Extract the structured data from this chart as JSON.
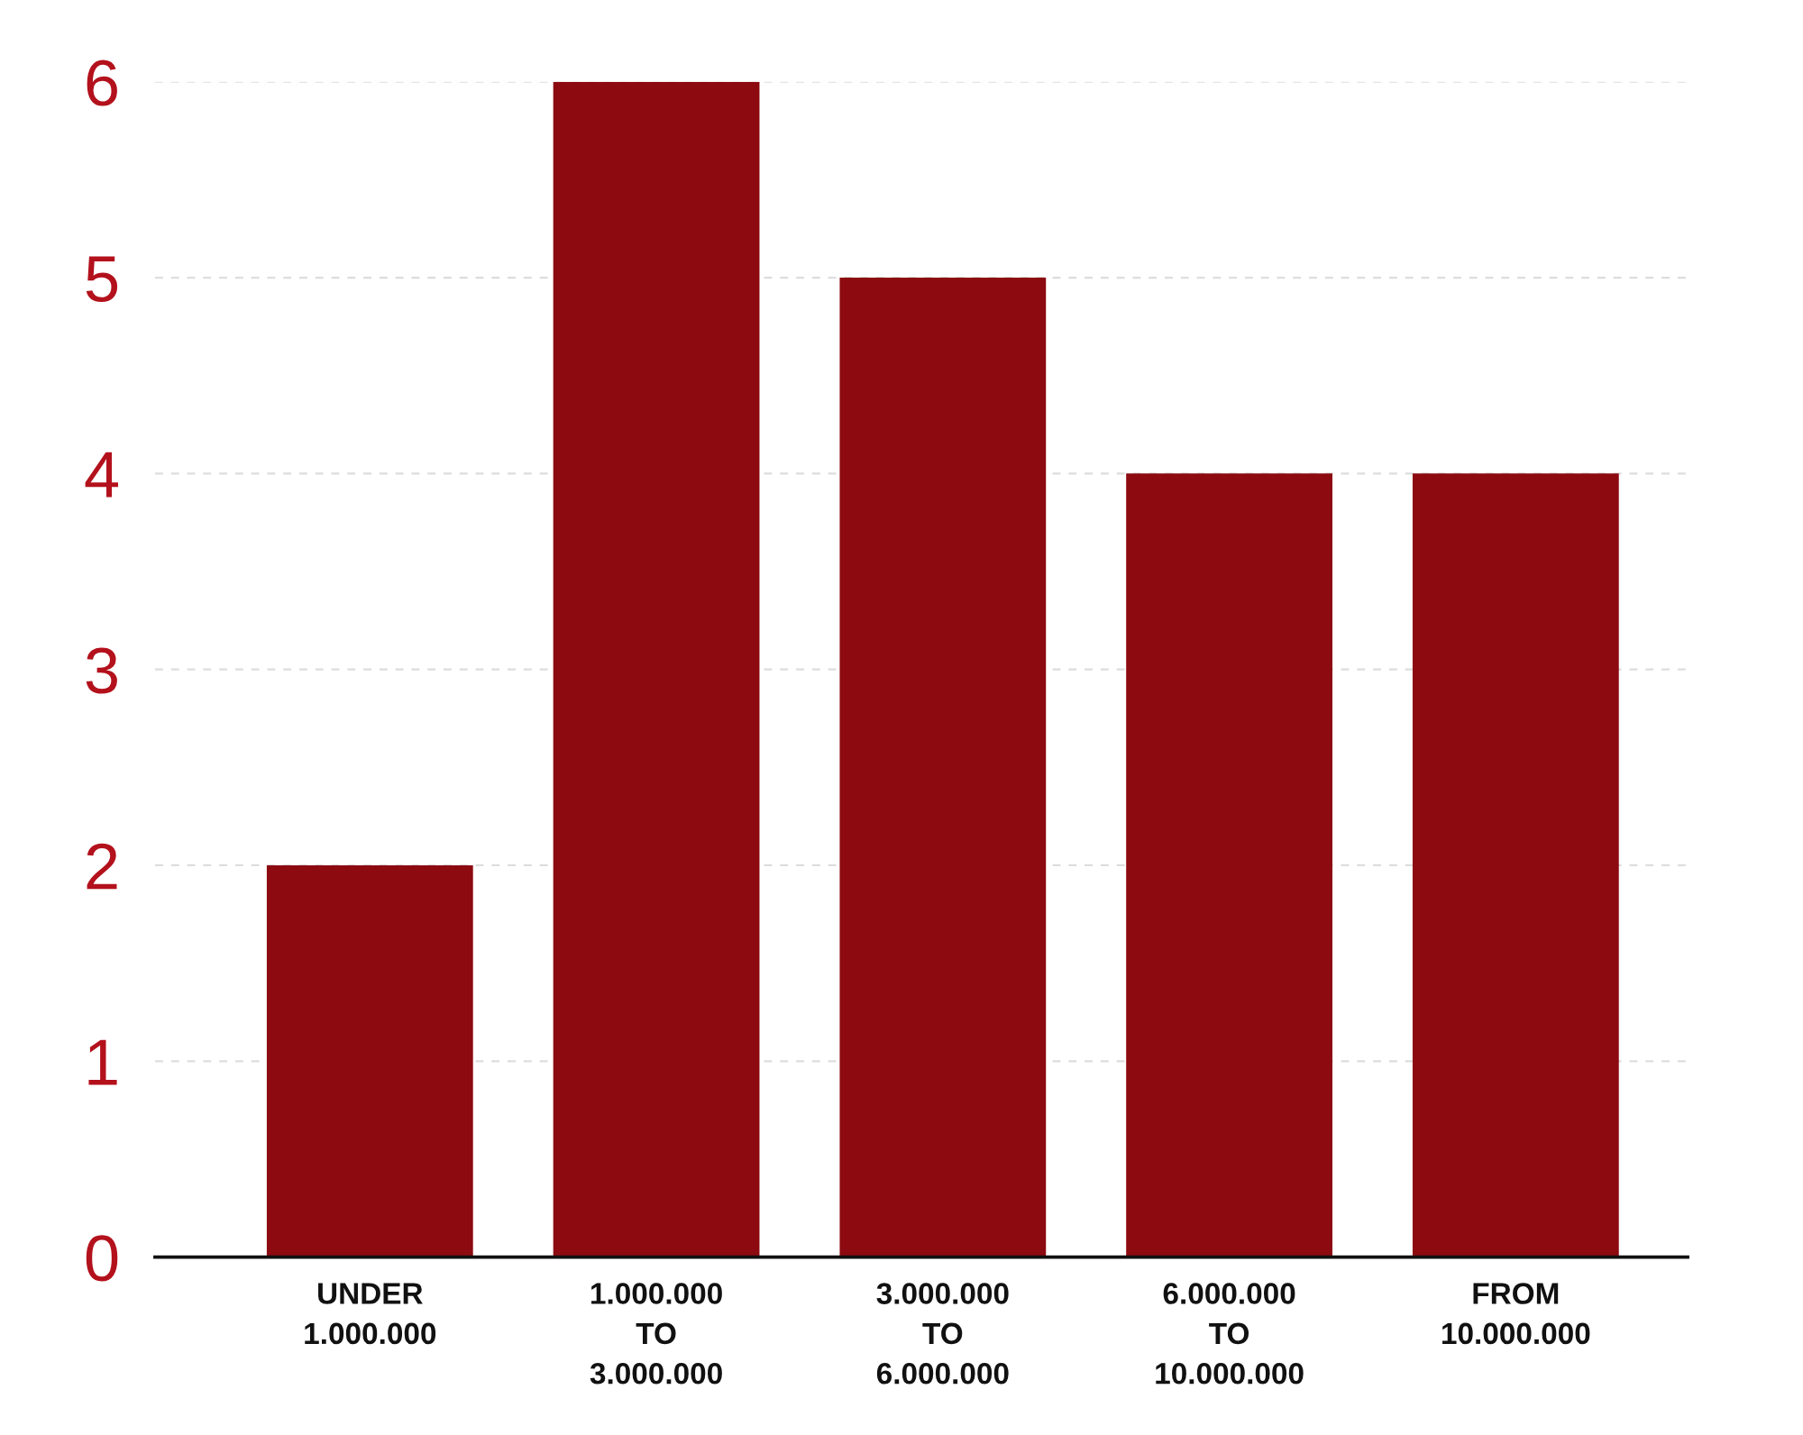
{
  "chart_data": {
    "type": "bar",
    "categories": [
      "UNDER\n1.000.000",
      "1.000.000\nTO\n3.000.000",
      "3.000.000\nTO\n6.000.000",
      "6.000.000\nTO\n10.000.000",
      "FROM\n10.000.000"
    ],
    "values": [
      2,
      6,
      5,
      4,
      4
    ],
    "color": "#8c0a10",
    "ylim": [
      0,
      6
    ],
    "yticks": [
      0,
      1,
      2,
      3,
      4,
      5,
      6
    ],
    "grid": "y"
  }
}
